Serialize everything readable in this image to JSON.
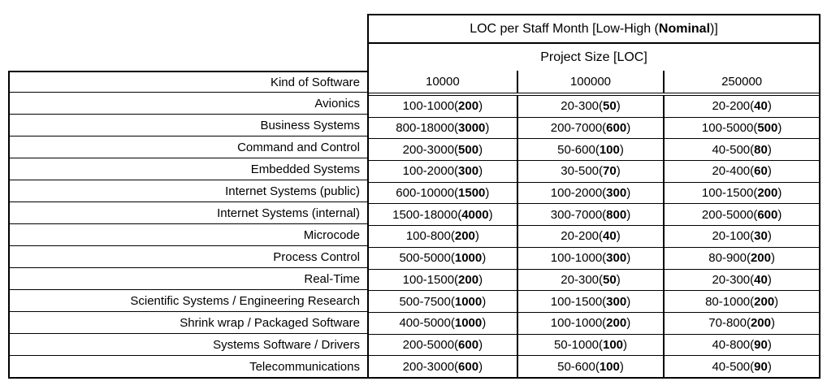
{
  "table": {
    "title": {
      "pre": "LOC per Staff Month [Low-High (",
      "bold": "Nominal",
      "post": ")]"
    },
    "subtitle": "Project Size [LOC]",
    "corner_label": "Kind of Software",
    "size_columns": [
      "10000",
      "100000",
      "250000"
    ],
    "rows": [
      {
        "label": "Avionics",
        "cells": [
          {
            "pre": "100-1000(",
            "bold": "200",
            "post": ")"
          },
          {
            "pre": "20-300(",
            "bold": "50",
            "post": ")"
          },
          {
            "pre": "20-200(",
            "bold": "40",
            "post": ")"
          }
        ]
      },
      {
        "label": "Business Systems",
        "cells": [
          {
            "pre": "800-18000(",
            "bold": "3000",
            "post": ")"
          },
          {
            "pre": "200-7000(",
            "bold": "600",
            "post": ")"
          },
          {
            "pre": "100-5000(",
            "bold": "500",
            "post": ")"
          }
        ]
      },
      {
        "label": "Command and Control",
        "cells": [
          {
            "pre": "200-3000(",
            "bold": "500",
            "post": ")"
          },
          {
            "pre": "50-600(",
            "bold": "100",
            "post": ")"
          },
          {
            "pre": "40-500(",
            "bold": "80",
            "post": ")"
          }
        ]
      },
      {
        "label": "Embedded Systems",
        "cells": [
          {
            "pre": "100-2000(",
            "bold": "300",
            "post": ")"
          },
          {
            "pre": "30-500(",
            "bold": "70",
            "post": ")"
          },
          {
            "pre": "20-400(",
            "bold": "60",
            "post": ")"
          }
        ]
      },
      {
        "label": "Internet Systems (public)",
        "cells": [
          {
            "pre": "600-10000(",
            "bold": "1500",
            "post": ")"
          },
          {
            "pre": "100-2000(",
            "bold": "300",
            "post": ")"
          },
          {
            "pre": "100-1500(",
            "bold": "200",
            "post": ")"
          }
        ]
      },
      {
        "label": "Internet Systems (internal)",
        "cells": [
          {
            "pre": "1500-18000(",
            "bold": "4000",
            "post": ")"
          },
          {
            "pre": "300-7000(",
            "bold": "800",
            "post": ")"
          },
          {
            "pre": "200-5000(",
            "bold": "600",
            "post": ")"
          }
        ]
      },
      {
        "label": "Microcode",
        "cells": [
          {
            "pre": "100-800(",
            "bold": "200",
            "post": ")"
          },
          {
            "pre": "20-200(",
            "bold": "40",
            "post": ")"
          },
          {
            "pre": "20-100(",
            "bold": "30",
            "post": ")"
          }
        ]
      },
      {
        "label": "Process Control",
        "cells": [
          {
            "pre": "500-5000(",
            "bold": "1000",
            "post": ")"
          },
          {
            "pre": "100-1000(",
            "bold": "300",
            "post": ")"
          },
          {
            "pre": "80-900(",
            "bold": "200",
            "post": ")"
          }
        ]
      },
      {
        "label": "Real-Time",
        "cells": [
          {
            "pre": "100-1500(",
            "bold": "200",
            "post": ")"
          },
          {
            "pre": "20-300(",
            "bold": "50",
            "post": ")"
          },
          {
            "pre": "20-300(",
            "bold": "40",
            "post": ")"
          }
        ]
      },
      {
        "label": "Scientific Systems / Engineering Research",
        "cells": [
          {
            "pre": "500-7500(",
            "bold": "1000",
            "post": ")"
          },
          {
            "pre": "100-1500(",
            "bold": "300",
            "post": ")"
          },
          {
            "pre": "80-1000(",
            "bold": "200",
            "post": ")"
          }
        ]
      },
      {
        "label": "Shrink wrap / Packaged Software",
        "cells": [
          {
            "pre": "400-5000(",
            "bold": "1000",
            "post": ")"
          },
          {
            "pre": "100-1000(",
            "bold": "200",
            "post": ")"
          },
          {
            "pre": "70-800(",
            "bold": "200",
            "post": ")"
          }
        ]
      },
      {
        "label": "Systems Software / Drivers",
        "cells": [
          {
            "pre": "200-5000(",
            "bold": "600",
            "post": ")"
          },
          {
            "pre": "50-1000(",
            "bold": "100",
            "post": ")"
          },
          {
            "pre": "40-800(",
            "bold": "90",
            "post": ")"
          }
        ]
      },
      {
        "label": "Telecommunications",
        "cells": [
          {
            "pre": "200-3000(",
            "bold": "600",
            "post": ")"
          },
          {
            "pre": "50-600(",
            "bold": "100",
            "post": ")"
          },
          {
            "pre": "40-500(",
            "bold": "90",
            "post": ")"
          }
        ]
      }
    ],
    "colors": {
      "border": "#000000",
      "text": "#000000",
      "background": "#ffffff"
    }
  }
}
